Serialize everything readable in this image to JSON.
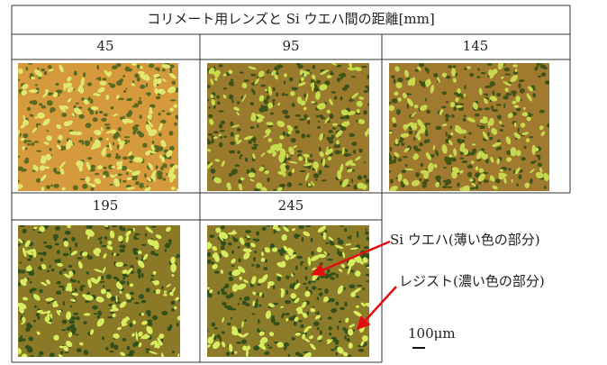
{
  "header": {
    "title": "コリメート用レンズと Si ウエハ間の距離[mm]"
  },
  "table": {
    "columns": [
      "45",
      "95",
      "145",
      "195",
      "245"
    ]
  },
  "annotations": {
    "wafer": "Si ウエハ(薄い色の部分)",
    "resist": "レジスト(濃い色の部分)",
    "scale": "100μm"
  }
}
